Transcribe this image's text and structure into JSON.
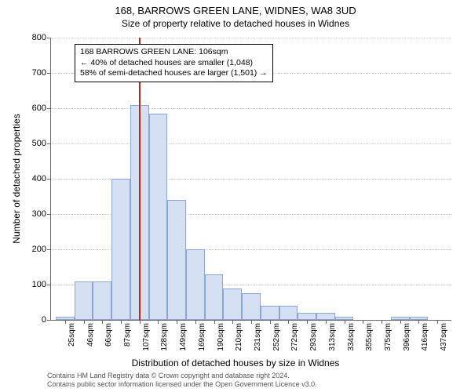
{
  "title": "168, BARROWS GREEN LANE, WIDNES, WA8 3UD",
  "subtitle": "Size of property relative to detached houses in Widnes",
  "ylabel": "Number of detached properties",
  "xlabel": "Distribution of detached houses by size in Widnes",
  "chart": {
    "type": "histogram",
    "ylim": [
      0,
      800
    ],
    "ytick_step": 100,
    "bar_fill": "#d5e0f2",
    "bar_stroke": "#8aa5d6",
    "bar_width_ratio": 1.0,
    "grid_color": "#c9c9c9",
    "background": "#ffffff",
    "reference_value": 106,
    "reference_color": "#c02418",
    "categories": [
      "25sqm",
      "46sqm",
      "66sqm",
      "87sqm",
      "107sqm",
      "128sqm",
      "149sqm",
      "169sqm",
      "190sqm",
      "210sqm",
      "231sqm",
      "252sqm",
      "272sqm",
      "293sqm",
      "313sqm",
      "334sqm",
      "355sqm",
      "375sqm",
      "396sqm",
      "416sqm",
      "437sqm"
    ],
    "values": [
      10,
      108,
      108,
      400,
      610,
      585,
      340,
      200,
      130,
      90,
      75,
      40,
      40,
      20,
      20,
      10,
      0,
      0,
      10,
      10,
      0
    ]
  },
  "annotation": {
    "line1": "168 BARROWS GREEN LANE: 106sqm",
    "line2": "← 40% of detached houses are smaller (1,048)",
    "line3": "58% of semi-detached houses are larger (1,501) →"
  },
  "footer": {
    "line1": "Contains HM Land Registry data © Crown copyright and database right 2024.",
    "line2": "Contains public sector information licensed under the Open Government Licence v3.0."
  }
}
